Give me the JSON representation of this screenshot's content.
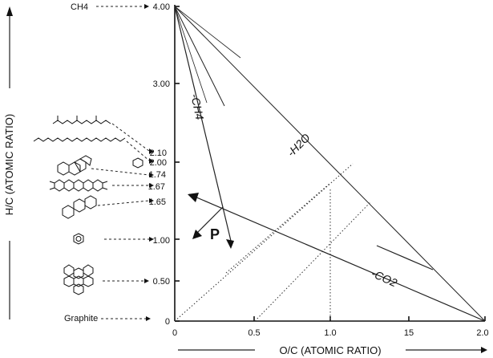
{
  "axes": {
    "x_label": "O/C (ATOMIC RATIO)",
    "y_label": "H/C (ATOMIC RATIO)",
    "x_ticks": [
      "0",
      "0.5",
      "1.0",
      "15",
      "2.0"
    ],
    "y_ticks": [
      "0",
      "0.50",
      "1.00",
      "1.65",
      "1.67",
      "1.74",
      "2.00",
      "2.10",
      "3.00",
      "4.00"
    ]
  },
  "compounds": {
    "methane": "CH4",
    "graphite": "Graphite"
  },
  "trajectories": {
    "ch4": "-CH4",
    "h2o": "-H2O",
    "co2": "-CO2",
    "point": "P"
  }
}
